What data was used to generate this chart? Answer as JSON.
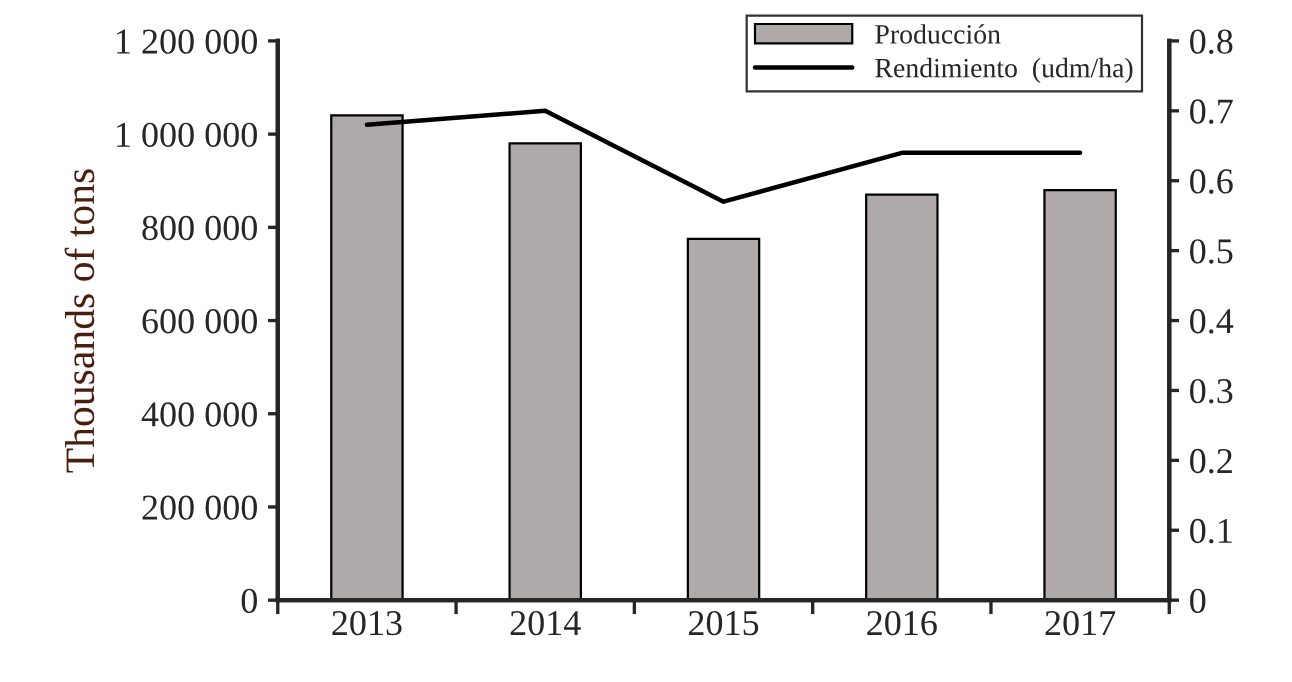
{
  "chart_data": {
    "type": "bar",
    "ylabel": "Thousands of tons",
    "categories": [
      "2013",
      "2014",
      "2015",
      "2016",
      "2017"
    ],
    "series": [
      {
        "name": "Producción",
        "color": "#afaaa9",
        "values": [
          1040000,
          980000,
          775000,
          870000,
          880000
        ]
      },
      {
        "name": "Rendimiento  (udm/ha)",
        "type": "line",
        "axis": "y2",
        "color": "#000000",
        "values": [
          0.68,
          0.7,
          0.57,
          0.64,
          0.64
        ]
      }
    ],
    "ylim": [
      0,
      1200000
    ],
    "yticks": [
      0,
      {
        "value": 200000,
        "label": "200 000"
      },
      {
        "value": 400000,
        "label": "400 000"
      },
      {
        "value": 600000,
        "label": "600 000"
      },
      {
        "value": 800000,
        "label": "800 000"
      },
      {
        "value": 1000000,
        "label": "1 000 000"
      },
      {
        "value": 1200000,
        "label": "1 200 000"
      }
    ],
    "y2lim": [
      0,
      0.8
    ],
    "y2ticks": [
      0,
      0.1,
      0.2,
      0.3,
      0.4,
      0.5,
      0.6,
      0.7,
      0.8
    ],
    "legend": "top right",
    "grid": false,
    "marker": "none",
    "line_style": "solid"
  }
}
